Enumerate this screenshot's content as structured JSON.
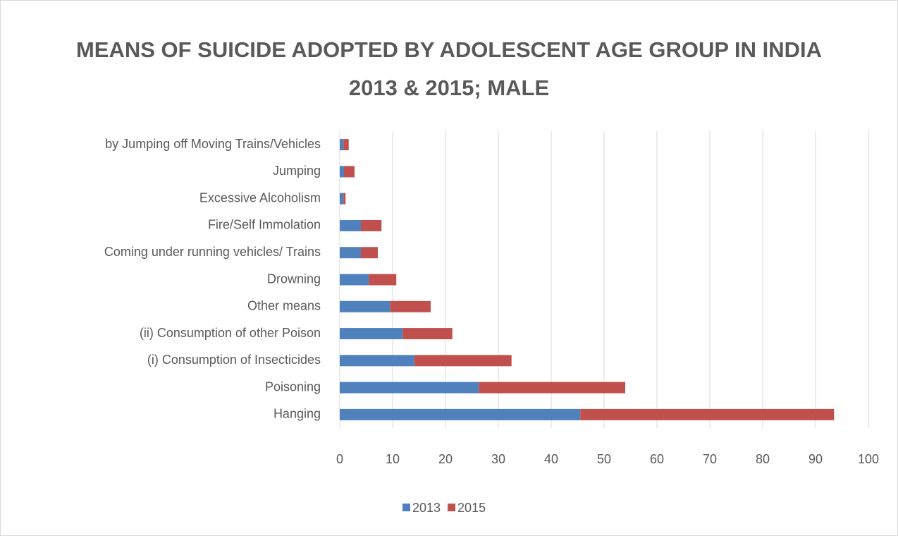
{
  "chart_data": {
    "type": "stacked_barh",
    "title": "MEANS OF SUICIDE ADOPTED BY ADOLESCENT AGE GROUP IN INDIA 2013 & 2015; MALE",
    "categories": [
      "Hanging",
      "Poisoning",
      "(i) Consumption of Insecticides",
      "(ii) Consumption of other Poison",
      "Other means",
      "Drowning",
      "Coming under running vehicles/ Trains",
      "Fire/Self Immolation",
      "Excessive Alcoholism",
      "Jumping",
      "by Jumping off Moving Trains/Vehicles"
    ],
    "series": [
      {
        "name": "2013",
        "color": "#4f81bd",
        "values": [
          45.5,
          26.3,
          14.1,
          11.9,
          9.5,
          5.5,
          4.0,
          4.0,
          0.7,
          0.8,
          0.7
        ]
      },
      {
        "name": "2015",
        "color": "#c0504d",
        "values": [
          48.0,
          27.7,
          18.4,
          9.4,
          7.7,
          5.2,
          3.2,
          3.9,
          0.4,
          2.0,
          1.0
        ]
      }
    ],
    "xlim": [
      0,
      100
    ],
    "xticks": [
      0,
      10,
      20,
      30,
      40,
      50,
      60,
      70,
      80,
      90,
      100
    ],
    "grid": true,
    "legend": "bottom"
  }
}
